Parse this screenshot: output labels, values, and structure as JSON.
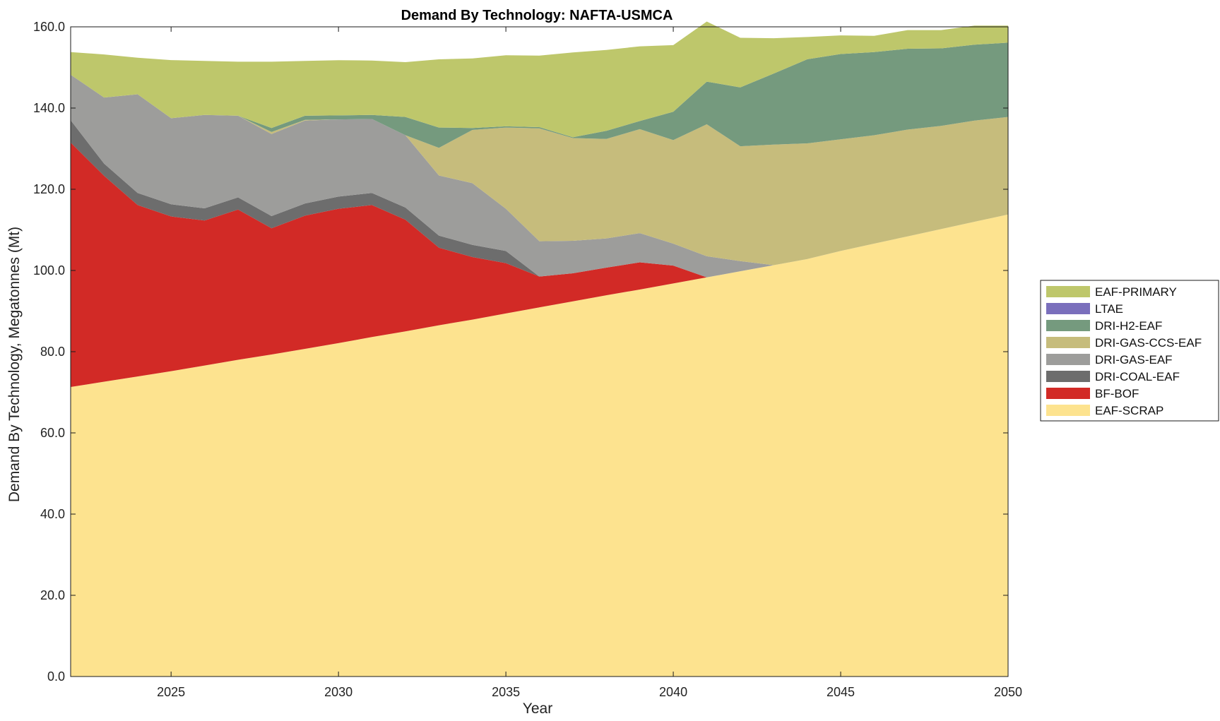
{
  "chart_data": {
    "type": "area",
    "stacked": true,
    "title": "Demand By Technology: NAFTA-USMCA",
    "xlabel": "Year",
    "ylabel": "Demand By Technology, Megatonnes (Mt)",
    "xlim": [
      2022,
      2050
    ],
    "ylim": [
      0,
      160
    ],
    "x_ticks": [
      2025,
      2030,
      2035,
      2040,
      2045,
      2050
    ],
    "x_tick_labels": [
      "2025",
      "2030",
      "2035",
      "2040",
      "2045",
      "2050"
    ],
    "y_ticks": [
      0,
      20,
      40,
      60,
      80,
      100,
      120,
      140,
      160
    ],
    "y_tick_labels": [
      "0.0",
      "20.0",
      "40.0",
      "60.0",
      "80.0",
      "100.0",
      "120.0",
      "140.0",
      "160.0"
    ],
    "grid": false,
    "legend_position": "right",
    "x": [
      2022,
      2023,
      2024,
      2025,
      2026,
      2027,
      2028,
      2029,
      2030,
      2031,
      2032,
      2033,
      2034,
      2035,
      2036,
      2037,
      2038,
      2039,
      2040,
      2041,
      2042,
      2043,
      2044,
      2045,
      2046,
      2047,
      2048,
      2049,
      2050
    ],
    "series": [
      {
        "name": "EAF-SCRAP",
        "color": "#fde38f",
        "values": [
          71.3,
          72.6,
          73.9,
          75.2,
          76.6,
          78.0,
          79.3,
          80.7,
          82.1,
          83.6,
          85.0,
          86.5,
          87.9,
          89.4,
          90.9,
          92.4,
          93.9,
          95.3,
          96.8,
          98.3,
          99.8,
          101.3,
          102.8,
          104.8,
          106.6,
          108.4,
          110.2,
          112.0,
          113.8
        ]
      },
      {
        "name": "BF-BOF",
        "color": "#d22a26",
        "values": [
          60.2,
          50.7,
          42.2,
          38.1,
          35.7,
          37.0,
          31.1,
          32.8,
          33.1,
          32.5,
          27.5,
          19.1,
          15.4,
          12.4,
          7.6,
          6.9,
          6.8,
          6.7,
          4.4,
          0.0,
          0.0,
          0.0,
          0.0,
          0.0,
          0.0,
          0.0,
          0.0,
          0.0,
          0.0
        ]
      },
      {
        "name": "DRI-COAL-EAF",
        "color": "#6d6d6d",
        "values": [
          5.5,
          3.0,
          3.0,
          3.0,
          3.0,
          3.0,
          3.0,
          3.0,
          3.0,
          3.0,
          3.0,
          3.0,
          3.0,
          3.0,
          0.0,
          0.0,
          0.0,
          0.0,
          0.0,
          0.0,
          0.0,
          0.0,
          0.0,
          0.0,
          0.0,
          0.0,
          0.0,
          0.0,
          0.0
        ]
      },
      {
        "name": "DRI-GAS-EAF",
        "color": "#9d9d9b",
        "values": [
          11.2,
          16.3,
          24.3,
          21.2,
          23.0,
          20.1,
          20.2,
          20.4,
          19.0,
          18.2,
          17.8,
          14.8,
          15.2,
          10.4,
          8.7,
          8.0,
          7.2,
          7.2,
          5.4,
          5.2,
          2.5,
          0.0,
          0.0,
          0.0,
          0.0,
          0.0,
          0.0,
          0.0,
          0.0
        ]
      },
      {
        "name": "DRI-GAS-CCS-EAF",
        "color": "#c6bc7c",
        "values": [
          0.0,
          0.0,
          0.0,
          0.0,
          0.0,
          0.0,
          0.5,
          0.2,
          0.0,
          0.0,
          0.0,
          6.8,
          13.1,
          20.0,
          27.8,
          25.3,
          24.5,
          25.6,
          25.5,
          32.5,
          28.3,
          29.7,
          28.5,
          27.5,
          26.7,
          26.3,
          25.4,
          24.9,
          24.0
        ]
      },
      {
        "name": "DRI-H2-EAF",
        "color": "#759a7e",
        "values": [
          0.0,
          0.0,
          0.0,
          0.0,
          0.0,
          0.0,
          1.0,
          1.0,
          1.0,
          1.0,
          4.5,
          5.0,
          0.5,
          0.3,
          0.3,
          0.2,
          2.0,
          2.0,
          7.0,
          10.5,
          14.5,
          17.5,
          20.7,
          21.0,
          20.5,
          19.9,
          19.1,
          18.7,
          18.3
        ]
      },
      {
        "name": "LTAE",
        "color": "#7a6fbc",
        "values": [
          0,
          0,
          0,
          0,
          0,
          0,
          0,
          0,
          0,
          0,
          0,
          0,
          0,
          0,
          0,
          0,
          0,
          0,
          0,
          0,
          0,
          0,
          0,
          0,
          0,
          0,
          0,
          0,
          0
        ]
      },
      {
        "name": "EAF-PRIMARY",
        "color": "#bec76b",
        "values": [
          5.6,
          10.6,
          9.0,
          14.3,
          13.3,
          13.3,
          16.3,
          13.5,
          13.6,
          13.4,
          13.5,
          16.8,
          17.1,
          17.5,
          17.6,
          20.9,
          19.9,
          18.4,
          16.4,
          14.8,
          12.2,
          8.7,
          5.5,
          4.6,
          4.0,
          4.6,
          4.5,
          4.7,
          4.2
        ]
      }
    ]
  }
}
